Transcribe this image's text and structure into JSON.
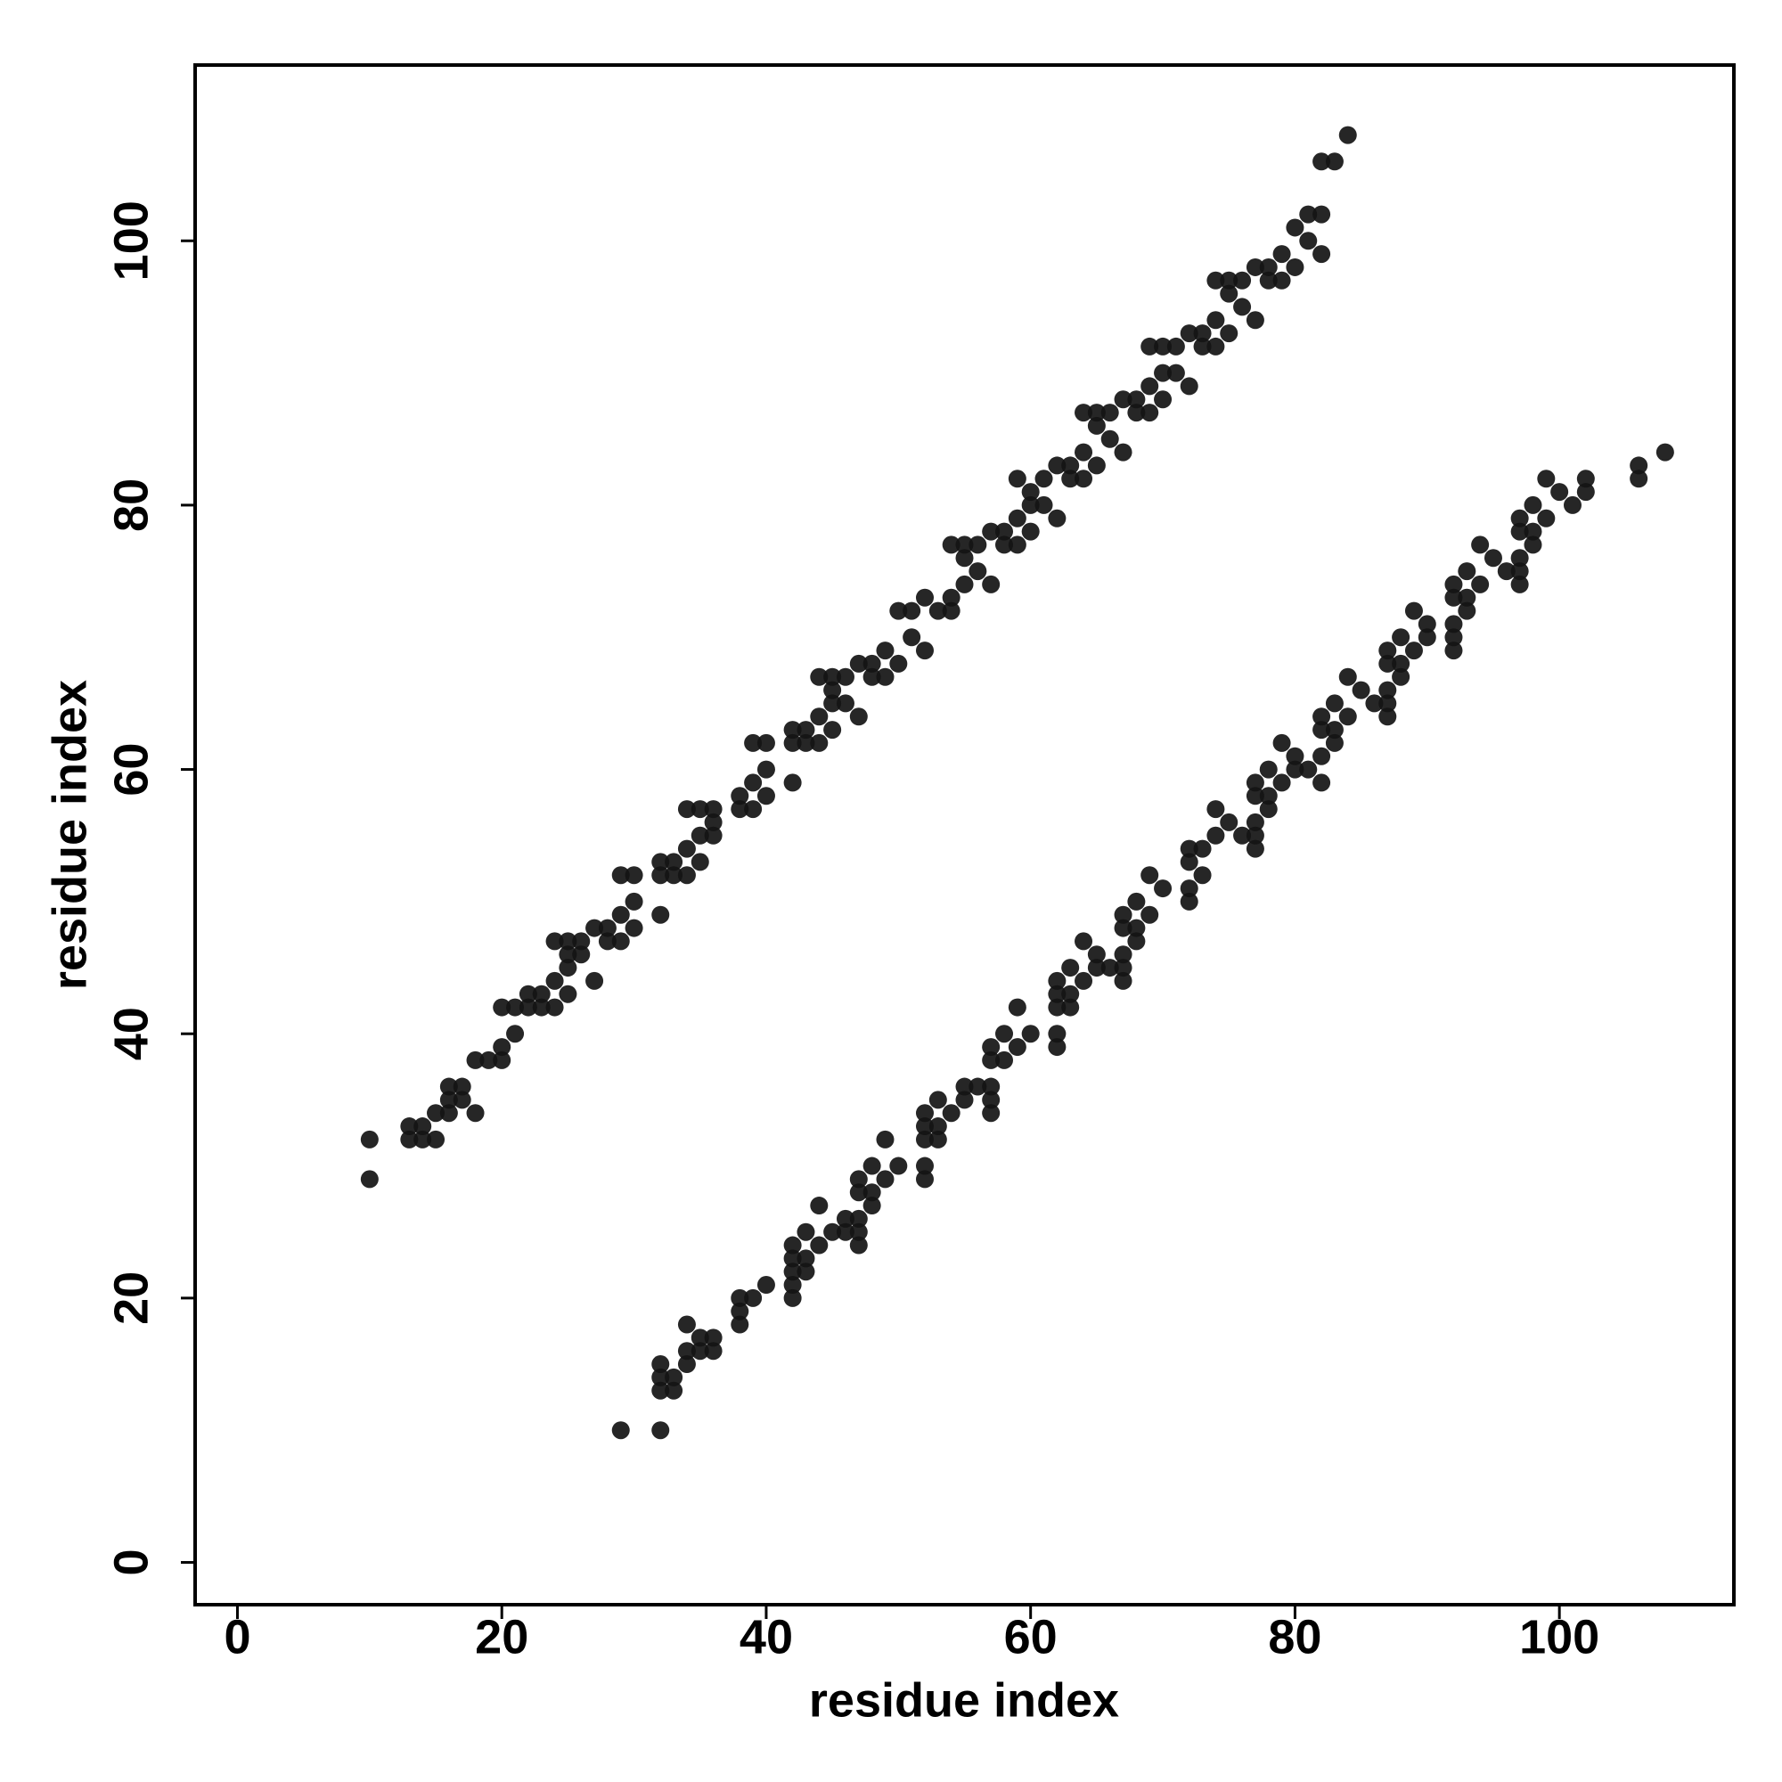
{
  "chart_data": {
    "type": "scatter",
    "xlabel": "residue index",
    "ylabel": "residue index",
    "x": [
      10,
      10,
      13,
      13,
      14,
      14,
      15,
      15,
      16,
      16,
      16,
      17,
      17,
      18,
      18,
      19,
      20,
      20,
      20,
      21,
      21,
      22,
      22,
      23,
      23,
      24,
      24,
      24,
      25,
      25,
      25,
      25,
      26,
      26,
      27,
      27,
      28,
      28,
      29,
      29,
      29,
      30,
      30,
      30,
      32,
      32,
      32,
      33,
      33,
      34,
      34,
      34,
      35,
      35,
      35,
      36,
      36,
      36,
      38,
      38,
      39,
      39,
      39,
      40,
      40,
      40,
      42,
      42,
      42,
      43,
      43,
      44,
      44,
      44,
      45,
      45,
      45,
      45,
      46,
      46,
      47,
      47,
      48,
      48,
      49,
      49,
      50,
      50,
      51,
      51,
      52,
      52,
      53,
      54,
      54,
      54,
      55,
      55,
      55,
      56,
      56,
      57,
      57,
      58,
      58,
      59,
      59,
      59,
      60,
      60,
      60,
      61,
      61,
      62,
      62,
      63,
      63,
      64,
      64,
      64,
      65,
      65,
      65,
      66,
      66,
      67,
      67,
      68,
      68,
      69,
      69,
      69,
      70,
      70,
      70,
      71,
      71,
      72,
      72,
      73,
      73,
      74,
      74,
      74,
      75,
      75,
      75,
      76,
      76,
      77,
      77,
      78,
      78,
      79,
      79,
      80,
      80,
      81,
      81,
      82,
      82,
      82,
      83,
      84,
      29,
      32,
      32,
      33,
      32,
      33,
      32,
      34,
      34,
      35,
      36,
      35,
      36,
      34,
      38,
      38,
      38,
      39,
      42,
      40,
      42,
      42,
      43,
      42,
      43,
      42,
      44,
      47,
      43,
      45,
      46,
      47,
      46,
      47,
      44,
      48,
      47,
      48,
      47,
      49,
      52,
      48,
      50,
      52,
      49,
      52,
      53,
      52,
      53,
      52,
      54,
      57,
      53,
      55,
      57,
      55,
      56,
      57,
      57,
      58,
      57,
      59,
      62,
      58,
      60,
      62,
      59,
      62,
      63,
      62,
      63,
      62,
      64,
      67,
      63,
      65,
      66,
      67,
      65,
      67,
      64,
      68,
      67,
      68,
      67,
      69,
      68,
      72,
      70,
      72,
      69,
      73,
      72,
      72,
      73,
      77,
      74,
      76,
      77,
      75,
      77,
      74,
      78,
      77,
      78,
      77,
      79,
      82,
      78,
      80,
      81,
      80,
      82,
      79,
      83,
      82,
      83,
      82,
      84,
      87,
      83,
      86,
      87,
      85,
      87,
      84,
      88,
      87,
      88,
      87,
      89,
      92,
      88,
      90,
      92,
      90,
      92,
      89,
      93,
      92,
      93,
      92,
      94,
      97,
      93,
      96,
      97,
      95,
      97,
      94,
      98,
      97,
      98,
      97,
      99,
      98,
      101,
      100,
      102,
      99,
      102,
      106,
      106,
      108
    ],
    "values": [
      29,
      32,
      32,
      33,
      32,
      33,
      32,
      34,
      34,
      35,
      36,
      35,
      36,
      34,
      38,
      38,
      38,
      39,
      42,
      40,
      42,
      42,
      43,
      42,
      43,
      42,
      44,
      47,
      43,
      45,
      46,
      47,
      46,
      47,
      44,
      48,
      47,
      48,
      47,
      49,
      52,
      48,
      50,
      52,
      49,
      52,
      53,
      52,
      53,
      52,
      54,
      57,
      53,
      55,
      57,
      55,
      56,
      57,
      57,
      58,
      57,
      59,
      62,
      58,
      60,
      62,
      59,
      62,
      63,
      62,
      63,
      62,
      64,
      67,
      63,
      65,
      66,
      67,
      65,
      67,
      64,
      68,
      67,
      68,
      67,
      69,
      68,
      72,
      70,
      72,
      69,
      73,
      72,
      72,
      73,
      77,
      74,
      76,
      77,
      75,
      77,
      74,
      78,
      77,
      78,
      77,
      79,
      82,
      78,
      80,
      81,
      80,
      82,
      79,
      83,
      82,
      83,
      82,
      84,
      87,
      83,
      86,
      87,
      85,
      87,
      84,
      88,
      87,
      88,
      87,
      89,
      92,
      88,
      90,
      92,
      90,
      92,
      89,
      93,
      92,
      93,
      92,
      94,
      97,
      93,
      96,
      97,
      95,
      97,
      94,
      98,
      97,
      98,
      97,
      99,
      98,
      101,
      100,
      102,
      99,
      102,
      106,
      106,
      108,
      10,
      10,
      13,
      13,
      14,
      14,
      15,
      15,
      16,
      16,
      16,
      17,
      17,
      18,
      18,
      19,
      20,
      20,
      20,
      21,
      21,
      22,
      22,
      23,
      23,
      24,
      24,
      24,
      25,
      25,
      25,
      25,
      26,
      26,
      27,
      27,
      28,
      28,
      29,
      29,
      29,
      30,
      30,
      30,
      32,
      32,
      32,
      33,
      33,
      34,
      34,
      34,
      35,
      35,
      35,
      36,
      36,
      36,
      38,
      38,
      39,
      39,
      39,
      40,
      40,
      40,
      42,
      42,
      42,
      43,
      43,
      44,
      44,
      44,
      45,
      45,
      45,
      45,
      46,
      46,
      47,
      47,
      48,
      48,
      49,
      49,
      50,
      50,
      51,
      51,
      52,
      52,
      53,
      54,
      54,
      54,
      55,
      55,
      55,
      56,
      56,
      57,
      57,
      58,
      58,
      59,
      59,
      59,
      60,
      60,
      60,
      61,
      61,
      62,
      62,
      63,
      63,
      64,
      64,
      64,
      65,
      65,
      65,
      66,
      66,
      67,
      67,
      68,
      68,
      69,
      69,
      69,
      70,
      70,
      70,
      71,
      71,
      72,
      72,
      73,
      73,
      74,
      74,
      74,
      75,
      75,
      75,
      76,
      76,
      77,
      77,
      78,
      78,
      79,
      79,
      80,
      80,
      81,
      81,
      82,
      82,
      82,
      83,
      84
    ],
    "color": "#141414",
    "xlim": [
      -3.2,
      113.2
    ],
    "ylim": [
      -3.2,
      113.3
    ],
    "xticks": [
      0,
      20,
      40,
      60,
      80,
      100
    ],
    "yticks": [
      0,
      20,
      40,
      60,
      80,
      100
    ]
  }
}
